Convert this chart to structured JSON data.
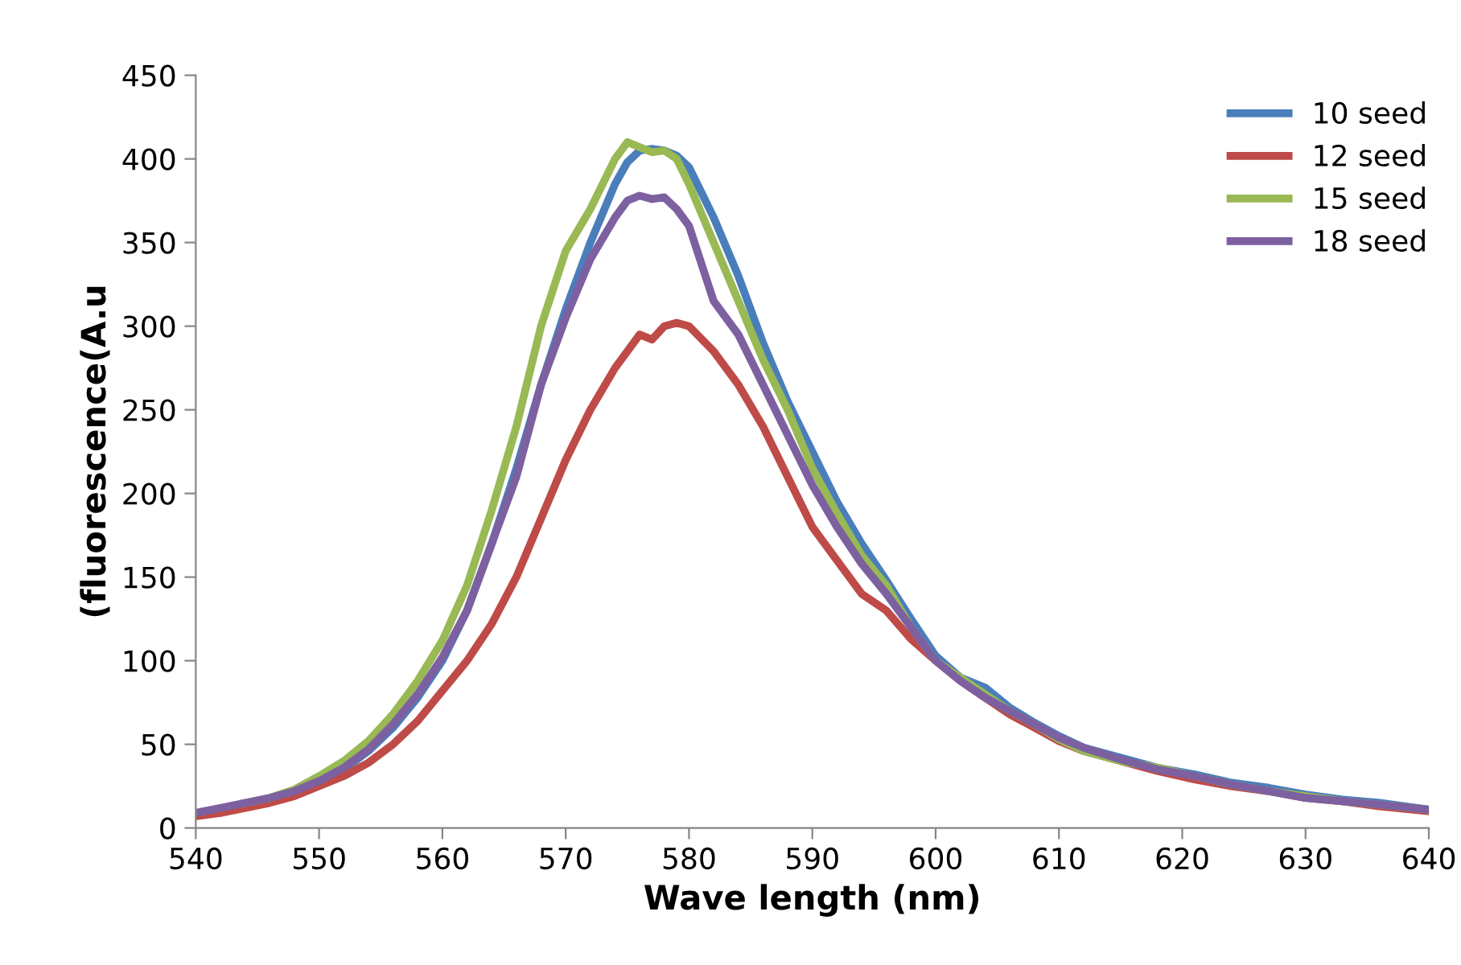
{
  "chart_data": {
    "type": "line",
    "xlabel": "Wave length (nm)",
    "ylabel": "(fluorescence(A.u",
    "xlim": [
      540,
      640
    ],
    "ylim": [
      0,
      450
    ],
    "xticks": [
      540,
      550,
      560,
      570,
      580,
      590,
      600,
      610,
      620,
      630,
      640
    ],
    "yticks": [
      0,
      50,
      100,
      150,
      200,
      250,
      300,
      350,
      400,
      450
    ],
    "grid": false,
    "legend": "top right",
    "marker": "none",
    "line_style": "solid",
    "x": [
      540,
      542,
      544,
      546,
      548,
      550,
      552,
      554,
      556,
      558,
      560,
      562,
      564,
      566,
      568,
      570,
      572,
      574,
      575,
      576,
      577,
      578,
      579,
      580,
      582,
      584,
      586,
      588,
      590,
      592,
      594,
      596,
      598,
      600,
      602,
      604,
      606,
      608,
      610,
      612,
      615,
      618,
      621,
      624,
      627,
      630,
      633,
      636,
      640
    ],
    "series": [
      {
        "name": "10 seed",
        "color": "#4a7ebb",
        "values": [
          null,
          null,
          null,
          null,
          null,
          27,
          35,
          46,
          60,
          78,
          100,
          130,
          170,
          215,
          265,
          310,
          350,
          385,
          398,
          405,
          406,
          405,
          402,
          395,
          365,
          330,
          290,
          255,
          225,
          195,
          170,
          148,
          125,
          103,
          90,
          84,
          72,
          63,
          55,
          48,
          42,
          36,
          32,
          27,
          24,
          20,
          17,
          15,
          11
        ]
      },
      {
        "name": "12 seed",
        "color": "#be4b48",
        "values": [
          7,
          9,
          12,
          15,
          19,
          25,
          31,
          39,
          50,
          64,
          82,
          100,
          122,
          150,
          185,
          220,
          250,
          275,
          285,
          295,
          292,
          300,
          302,
          300,
          285,
          265,
          240,
          210,
          180,
          160,
          140,
          130,
          113,
          100,
          88,
          78,
          68,
          60,
          52,
          46,
          40,
          34,
          29,
          25,
          22,
          18,
          16,
          13,
          10
        ]
      },
      {
        "name": "15 seed",
        "color": "#98b954",
        "values": [
          null,
          null,
          15,
          18,
          23,
          31,
          40,
          52,
          68,
          88,
          112,
          145,
          190,
          240,
          300,
          345,
          370,
          400,
          410,
          407,
          404,
          405,
          400,
          385,
          350,
          315,
          280,
          250,
          215,
          188,
          163,
          145,
          120,
          100,
          90,
          80,
          70,
          62,
          53,
          46,
          40,
          36,
          31,
          26,
          22,
          19,
          16,
          14,
          11
        ]
      },
      {
        "name": "18 seed",
        "color": "#7d60a0",
        "values": [
          9,
          12,
          15,
          18,
          22,
          28,
          36,
          47,
          62,
          80,
          102,
          130,
          170,
          210,
          265,
          305,
          340,
          365,
          375,
          378,
          376,
          377,
          370,
          360,
          315,
          295,
          265,
          235,
          205,
          180,
          158,
          140,
          120,
          100,
          88,
          78,
          70,
          62,
          54,
          48,
          41,
          35,
          31,
          26,
          22,
          18,
          16,
          14,
          11
        ]
      }
    ]
  }
}
